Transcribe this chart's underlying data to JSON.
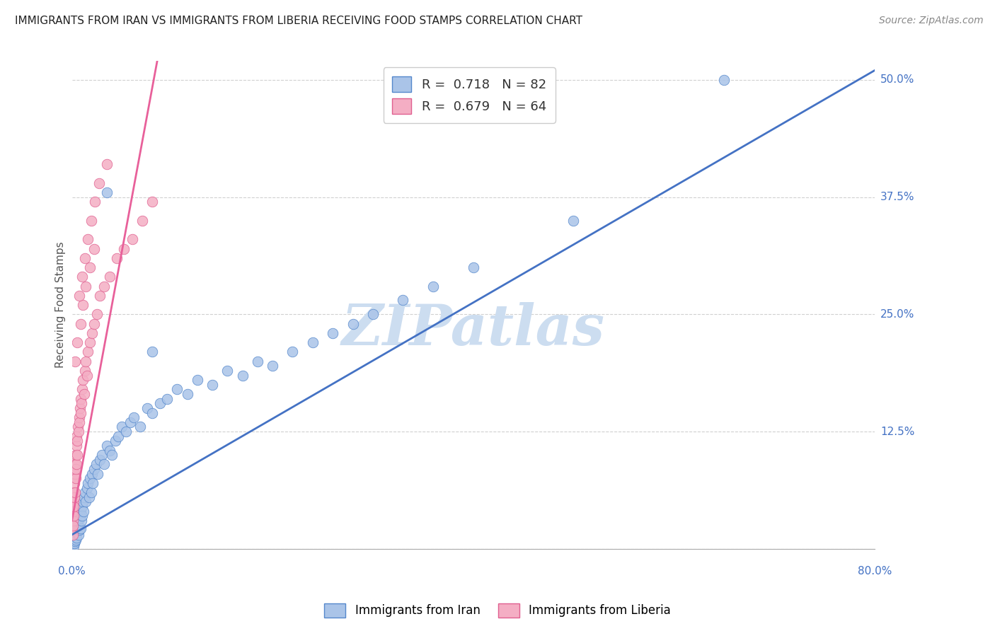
{
  "title": "IMMIGRANTS FROM IRAN VS IMMIGRANTS FROM LIBERIA RECEIVING FOOD STAMPS CORRELATION CHART",
  "source": "Source: ZipAtlas.com",
  "ylabel": "Receiving Food Stamps",
  "ytick_labels": [
    "12.5%",
    "25.0%",
    "37.5%",
    "50.0%"
  ],
  "ytick_values": [
    12.5,
    25.0,
    37.5,
    50.0
  ],
  "xlim": [
    0.0,
    80.0
  ],
  "ylim": [
    0.0,
    52.0
  ],
  "iran_color": "#aac4e8",
  "liberia_color": "#f4aec4",
  "iran_edge_color": "#5588cc",
  "liberia_edge_color": "#e06090",
  "iran_line_color": "#4472c4",
  "liberia_line_color": "#e8609a",
  "watermark": "ZIPatlas",
  "watermark_color": "#ccddf0",
  "iran_R": 0.718,
  "iran_N": 82,
  "liberia_R": 0.679,
  "liberia_N": 64,
  "iran_scatter_x": [
    0.05,
    0.08,
    0.1,
    0.12,
    0.15,
    0.18,
    0.2,
    0.22,
    0.25,
    0.28,
    0.3,
    0.33,
    0.35,
    0.38,
    0.4,
    0.43,
    0.45,
    0.48,
    0.5,
    0.55,
    0.6,
    0.65,
    0.7,
    0.75,
    0.8,
    0.85,
    0.9,
    0.95,
    1.0,
    1.05,
    1.1,
    1.15,
    1.2,
    1.3,
    1.4,
    1.5,
    1.6,
    1.7,
    1.8,
    1.9,
    2.0,
    2.1,
    2.2,
    2.4,
    2.6,
    2.8,
    3.0,
    3.2,
    3.5,
    3.8,
    4.0,
    4.3,
    4.6,
    5.0,
    5.4,
    5.8,
    6.2,
    6.8,
    7.5,
    8.0,
    8.8,
    9.5,
    10.5,
    11.5,
    12.5,
    14.0,
    15.5,
    17.0,
    18.5,
    20.0,
    22.0,
    24.0,
    26.0,
    28.0,
    30.0,
    33.0,
    36.0,
    40.0,
    50.0,
    65.0,
    3.5,
    8.0
  ],
  "iran_scatter_y": [
    0.8,
    1.2,
    0.5,
    1.5,
    1.0,
    0.3,
    1.8,
    0.6,
    1.2,
    2.0,
    1.5,
    0.8,
    2.2,
    1.0,
    1.8,
    2.5,
    1.2,
    3.0,
    2.0,
    2.5,
    2.8,
    1.5,
    3.2,
    2.0,
    3.5,
    2.2,
    4.0,
    3.0,
    4.5,
    3.5,
    5.0,
    4.0,
    5.5,
    6.0,
    5.0,
    6.5,
    7.0,
    5.5,
    7.5,
    6.0,
    8.0,
    7.0,
    8.5,
    9.0,
    8.0,
    9.5,
    10.0,
    9.0,
    11.0,
    10.5,
    10.0,
    11.5,
    12.0,
    13.0,
    12.5,
    13.5,
    14.0,
    13.0,
    15.0,
    14.5,
    15.5,
    16.0,
    17.0,
    16.5,
    18.0,
    17.5,
    19.0,
    18.5,
    20.0,
    19.5,
    21.0,
    22.0,
    23.0,
    24.0,
    25.0,
    26.5,
    28.0,
    30.0,
    35.0,
    50.0,
    38.0,
    21.0
  ],
  "liberia_scatter_x": [
    0.05,
    0.07,
    0.09,
    0.1,
    0.12,
    0.14,
    0.16,
    0.18,
    0.2,
    0.22,
    0.25,
    0.28,
    0.3,
    0.33,
    0.35,
    0.38,
    0.4,
    0.43,
    0.45,
    0.48,
    0.5,
    0.55,
    0.6,
    0.65,
    0.7,
    0.75,
    0.8,
    0.85,
    0.9,
    0.95,
    1.0,
    1.1,
    1.2,
    1.3,
    1.4,
    1.5,
    1.6,
    1.8,
    2.0,
    2.2,
    2.5,
    2.8,
    3.2,
    3.8,
    4.5,
    5.2,
    6.0,
    7.0,
    8.0,
    0.3,
    0.55,
    0.85,
    1.1,
    1.4,
    1.8,
    2.2,
    0.7,
    1.0,
    1.3,
    1.6,
    1.9,
    2.3,
    2.7,
    3.5
  ],
  "liberia_scatter_y": [
    2.0,
    3.0,
    1.5,
    4.0,
    2.5,
    5.0,
    3.5,
    6.0,
    4.5,
    7.0,
    5.5,
    8.0,
    6.0,
    9.0,
    7.5,
    10.0,
    8.5,
    11.0,
    9.0,
    12.0,
    10.0,
    11.5,
    13.0,
    12.5,
    14.0,
    13.5,
    15.0,
    14.5,
    16.0,
    15.5,
    17.0,
    18.0,
    16.5,
    19.0,
    20.0,
    18.5,
    21.0,
    22.0,
    23.0,
    24.0,
    25.0,
    27.0,
    28.0,
    29.0,
    31.0,
    32.0,
    33.0,
    35.0,
    37.0,
    20.0,
    22.0,
    24.0,
    26.0,
    28.0,
    30.0,
    32.0,
    27.0,
    29.0,
    31.0,
    33.0,
    35.0,
    37.0,
    39.0,
    41.0
  ],
  "iran_line_x0": 0.0,
  "iran_line_y0": 1.5,
  "iran_line_x1": 80.0,
  "iran_line_y1": 51.0,
  "liberia_line_x0": 0.0,
  "liberia_line_y0": 3.0,
  "liberia_line_x1": 8.5,
  "liberia_line_y1": 52.0
}
